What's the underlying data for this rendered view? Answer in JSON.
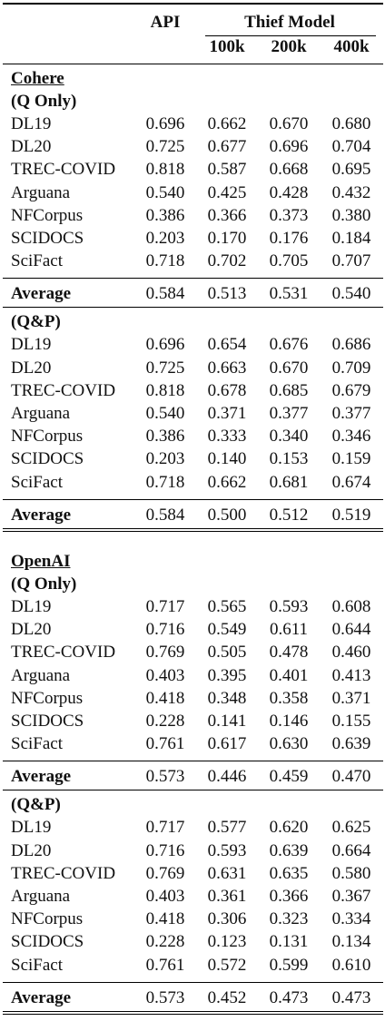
{
  "header": {
    "api": "API",
    "thief_model": "Thief Model",
    "cols": [
      "100k",
      "200k",
      "400k"
    ]
  },
  "blocks": [
    {
      "provider": "Cohere",
      "sections": [
        {
          "label": "(Q Only)",
          "rows": [
            {
              "name": "DL19",
              "vals": [
                "0.696",
                "0.662",
                "0.670",
                "0.680"
              ]
            },
            {
              "name": "DL20",
              "vals": [
                "0.725",
                "0.677",
                "0.696",
                "0.704"
              ]
            },
            {
              "name": "TREC-COVID",
              "vals": [
                "0.818",
                "0.587",
                "0.668",
                "0.695"
              ]
            },
            {
              "name": "Arguana",
              "vals": [
                "0.540",
                "0.425",
                "0.428",
                "0.432"
              ]
            },
            {
              "name": "NFCorpus",
              "vals": [
                "0.386",
                "0.366",
                "0.373",
                "0.380"
              ]
            },
            {
              "name": "SCIDOCS",
              "vals": [
                "0.203",
                "0.170",
                "0.176",
                "0.184"
              ]
            },
            {
              "name": "SciFact",
              "vals": [
                "0.718",
                "0.702",
                "0.705",
                "0.707"
              ]
            }
          ],
          "average": {
            "name": "Average",
            "vals": [
              "0.584",
              "0.513",
              "0.531",
              "0.540"
            ]
          }
        },
        {
          "label": "(Q&P)",
          "rows": [
            {
              "name": "DL19",
              "vals": [
                "0.696",
                "0.654",
                "0.676",
                "0.686"
              ]
            },
            {
              "name": "DL20",
              "vals": [
                "0.725",
                "0.663",
                "0.670",
                "0.709"
              ]
            },
            {
              "name": "TREC-COVID",
              "vals": [
                "0.818",
                "0.678",
                "0.685",
                "0.679"
              ]
            },
            {
              "name": "Arguana",
              "vals": [
                "0.540",
                "0.371",
                "0.377",
                "0.377"
              ]
            },
            {
              "name": "NFCorpus",
              "vals": [
                "0.386",
                "0.333",
                "0.340",
                "0.346"
              ]
            },
            {
              "name": "SCIDOCS",
              "vals": [
                "0.203",
                "0.140",
                "0.153",
                "0.159"
              ]
            },
            {
              "name": "SciFact",
              "vals": [
                "0.718",
                "0.662",
                "0.681",
                "0.674"
              ]
            }
          ],
          "average": {
            "name": "Average",
            "vals": [
              "0.584",
              "0.500",
              "0.512",
              "0.519"
            ]
          }
        }
      ]
    },
    {
      "provider": "OpenAI",
      "sections": [
        {
          "label": "(Q Only)",
          "rows": [
            {
              "name": "DL19",
              "vals": [
                "0.717",
                "0.565",
                "0.593",
                "0.608"
              ]
            },
            {
              "name": "DL20",
              "vals": [
                "0.716",
                "0.549",
                "0.611",
                "0.644"
              ]
            },
            {
              "name": "TREC-COVID",
              "vals": [
                "0.769",
                "0.505",
                "0.478",
                "0.460"
              ]
            },
            {
              "name": "Arguana",
              "vals": [
                "0.403",
                "0.395",
                "0.401",
                "0.413"
              ]
            },
            {
              "name": "NFCorpus",
              "vals": [
                "0.418",
                "0.348",
                "0.358",
                "0.371"
              ]
            },
            {
              "name": "SCIDOCS",
              "vals": [
                "0.228",
                "0.141",
                "0.146",
                "0.155"
              ]
            },
            {
              "name": "SciFact",
              "vals": [
                "0.761",
                "0.617",
                "0.630",
                "0.639"
              ]
            }
          ],
          "average": {
            "name": "Average",
            "vals": [
              "0.573",
              "0.446",
              "0.459",
              "0.470"
            ]
          }
        },
        {
          "label": "(Q&P)",
          "rows": [
            {
              "name": "DL19",
              "vals": [
                "0.717",
                "0.577",
                "0.620",
                "0.625"
              ]
            },
            {
              "name": "DL20",
              "vals": [
                "0.716",
                "0.593",
                "0.639",
                "0.664"
              ]
            },
            {
              "name": "TREC-COVID",
              "vals": [
                "0.769",
                "0.631",
                "0.635",
                "0.580"
              ]
            },
            {
              "name": "Arguana",
              "vals": [
                "0.403",
                "0.361",
                "0.366",
                "0.367"
              ]
            },
            {
              "name": "NFCorpus",
              "vals": [
                "0.418",
                "0.306",
                "0.323",
                "0.334"
              ]
            },
            {
              "name": "SCIDOCS",
              "vals": [
                "0.228",
                "0.123",
                "0.131",
                "0.134"
              ]
            },
            {
              "name": "SciFact",
              "vals": [
                "0.761",
                "0.572",
                "0.599",
                "0.610"
              ]
            }
          ],
          "average": {
            "name": "Average",
            "vals": [
              "0.573",
              "0.452",
              "0.473",
              "0.473"
            ]
          }
        }
      ]
    }
  ]
}
